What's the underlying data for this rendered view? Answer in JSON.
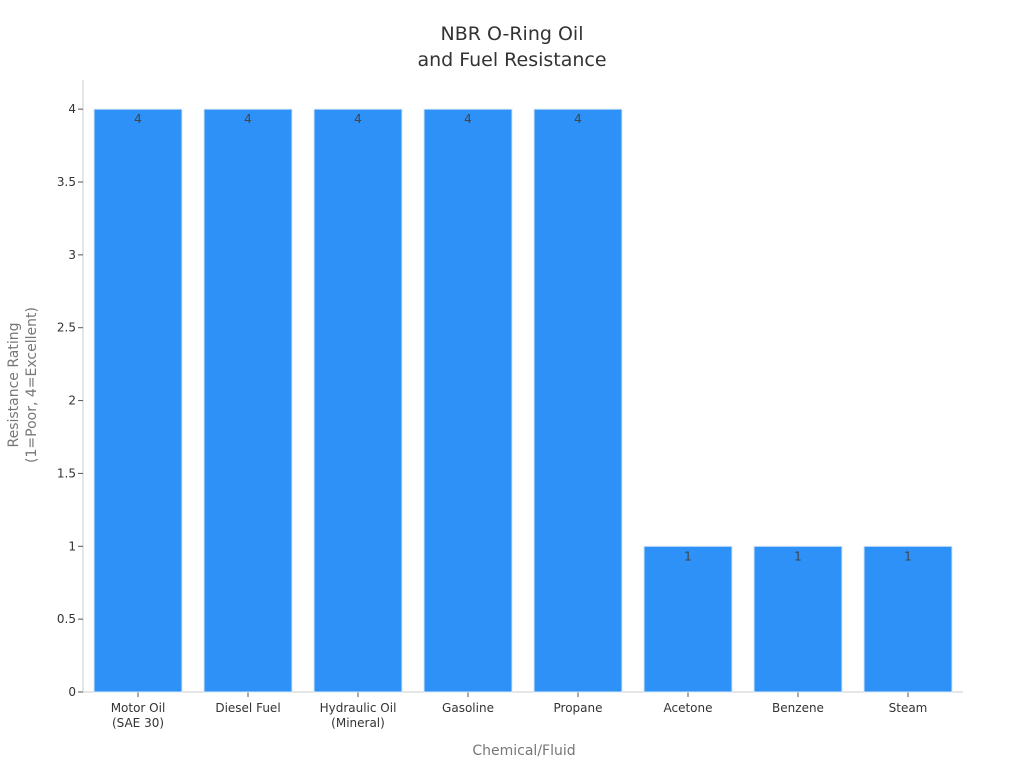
{
  "chart_data": {
    "type": "bar",
    "title": [
      "NBR O-Ring Oil",
      "and Fuel Resistance"
    ],
    "xlabel": "Chemical/Fluid",
    "ylabel": [
      "Resistance Rating",
      "(1=Poor, 4=Excellent)"
    ],
    "categories": [
      [
        "Motor Oil",
        "(SAE 30)"
      ],
      [
        "Diesel Fuel"
      ],
      [
        "Hydraulic Oil",
        "(Mineral)"
      ],
      [
        "Gasoline"
      ],
      [
        "Propane"
      ],
      [
        "Acetone"
      ],
      [
        "Benzene"
      ],
      [
        "Steam"
      ]
    ],
    "values": [
      4,
      4,
      4,
      4,
      4,
      1,
      1,
      1
    ],
    "data_labels": [
      "4",
      "4",
      "4",
      "4",
      "4",
      "1",
      "1",
      "1"
    ],
    "ylim": [
      0,
      4.2
    ],
    "yticks": [
      0,
      0.5,
      1,
      1.5,
      2,
      2.5,
      3,
      3.5,
      4
    ],
    "ytick_labels": [
      "0",
      "0.5",
      "1",
      "1.5",
      "2",
      "2.5",
      "3",
      "3.5",
      "4"
    ],
    "grid": false,
    "legend": "none",
    "colors": {
      "bar": "#2e91f7",
      "bar_edge": "#d6e6f5",
      "axis": "#cccccc",
      "text": "#333333",
      "axis_title": "#777777"
    }
  }
}
